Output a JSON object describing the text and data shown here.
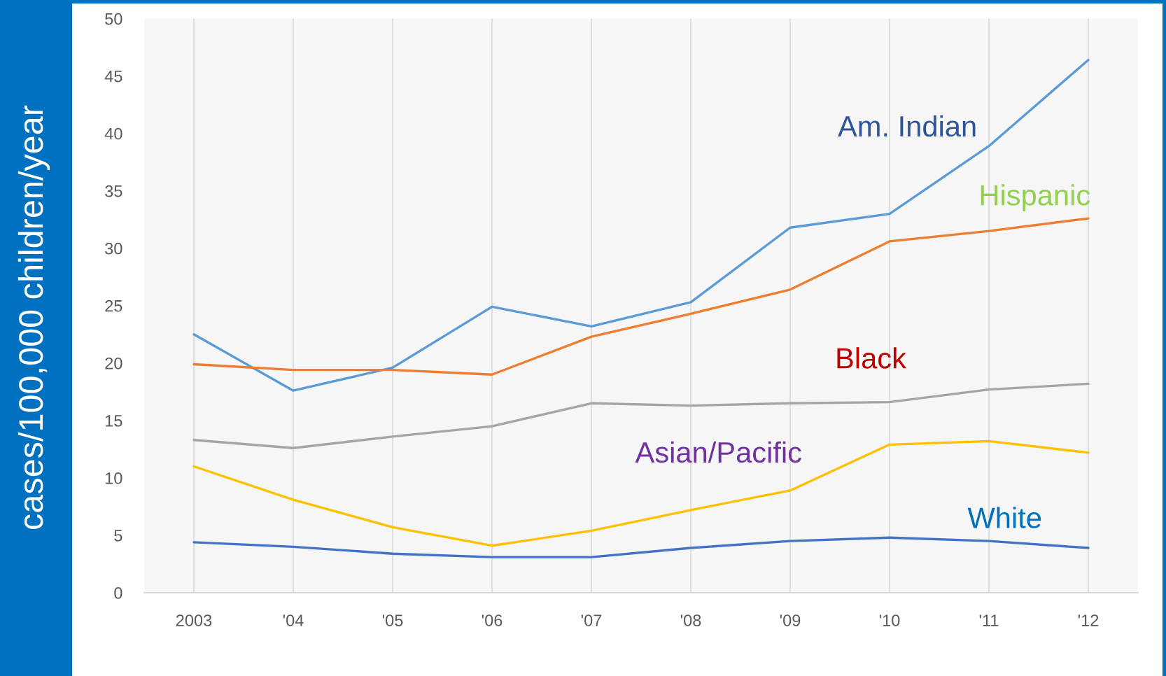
{
  "chart_data": {
    "type": "line",
    "ylabel": "cases/100,000 children/year",
    "categories": [
      "2003",
      "'04",
      "'05",
      "'06",
      "'07",
      "'08",
      "'09",
      "'10",
      "'11",
      "'12"
    ],
    "series": [
      {
        "name": "Am. Indian",
        "color": "#5b9bd5",
        "values": [
          22.5,
          17.6,
          19.6,
          24.9,
          23.2,
          25.3,
          31.8,
          33.0,
          38.9,
          46.4
        ]
      },
      {
        "name": "Hispanic",
        "color": "#ed7d31",
        "values": [
          19.9,
          19.4,
          19.4,
          19.0,
          22.3,
          24.3,
          26.4,
          30.6,
          31.5,
          32.6
        ]
      },
      {
        "name": "Black",
        "color": "#a5a5a5",
        "values": [
          13.3,
          12.6,
          13.6,
          14.5,
          16.5,
          16.3,
          16.5,
          16.6,
          17.7,
          18.2
        ]
      },
      {
        "name": "Asian/Pacific",
        "color": "#ffc000",
        "values": [
          11.0,
          8.1,
          5.7,
          4.1,
          5.4,
          7.2,
          8.9,
          12.9,
          13.2,
          12.2
        ]
      },
      {
        "name": "White",
        "color": "#4472c4",
        "values": [
          4.4,
          4.0,
          3.4,
          3.1,
          3.1,
          3.9,
          4.5,
          4.8,
          4.5,
          3.9
        ]
      }
    ],
    "ylim": [
      0,
      50
    ],
    "yticks": [
      0,
      5,
      10,
      15,
      20,
      25,
      30,
      35,
      40,
      45,
      50
    ],
    "grid": "x",
    "legend": false,
    "line_style": "solid"
  }
}
